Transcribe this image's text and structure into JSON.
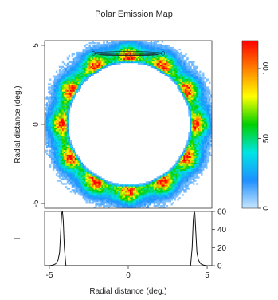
{
  "chart_data": {
    "type": "heatmap",
    "title": "Polar Emission Map",
    "main": {
      "xlim": [
        -5.3,
        5.3
      ],
      "ylim": [
        -5.3,
        5.3
      ],
      "ylabel": "Radial distance (deg.)",
      "yticks": [
        -5,
        0,
        5
      ],
      "ring_radius_deg": 4.1,
      "ring_width_deg": 0.6,
      "hotspot_angles_deg": [
        90,
        60,
        30,
        0,
        -30,
        -60,
        -90,
        -120,
        -150,
        180,
        150,
        120
      ],
      "contour_arc": {
        "x_from": -2.2,
        "x_to": 2.2,
        "y": 4.5
      }
    },
    "colorbar": {
      "range": [
        0,
        120
      ],
      "ticks": [
        0,
        50,
        100
      ],
      "stops": [
        "#c8e6ff",
        "#1e90ff",
        "#00e5e5",
        "#00d000",
        "#ffff00",
        "#ff8000",
        "#ff0000"
      ]
    },
    "profile": {
      "xlabel": "Radial distance (deg.)",
      "ylabel": "I",
      "xlim": [
        -5.3,
        5.3
      ],
      "ylim": [
        0,
        60
      ],
      "xticks": [
        -5,
        0,
        5
      ],
      "yticks": [
        0,
        20,
        40,
        60
      ],
      "x": [
        -5.3,
        -5.0,
        -4.8,
        -4.6,
        -4.45,
        -4.35,
        -4.28,
        -4.22,
        -4.17,
        -4.12,
        -4.05,
        -3.95,
        3.95,
        4.05,
        4.12,
        4.17,
        4.22,
        4.28,
        4.35,
        4.45,
        4.6,
        4.8,
        5.0,
        5.3
      ],
      "y": [
        0,
        0,
        0.5,
        2,
        6,
        15,
        38,
        58,
        60,
        50,
        20,
        0,
        0,
        20,
        50,
        60,
        58,
        38,
        15,
        6,
        2,
        0.5,
        0,
        0
      ]
    }
  }
}
